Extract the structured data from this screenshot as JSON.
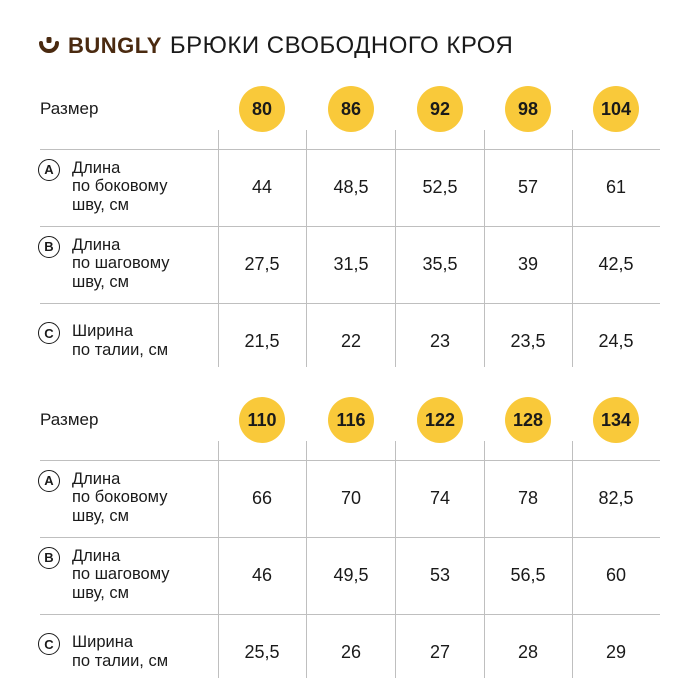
{
  "header": {
    "brand": "BUNGLY",
    "title": "БРЮКИ СВОБОДНОГО КРОЯ",
    "logo_icon": "smile-cup-icon",
    "brand_color": "#4a2a10"
  },
  "colors": {
    "accent": "#f9c93a",
    "grid": "#bfbfbf"
  },
  "tables": [
    {
      "size_label": "Размер",
      "sizes": [
        "80",
        "86",
        "92",
        "98",
        "104"
      ],
      "rows": [
        {
          "badge": "A",
          "label": [
            "Длина",
            "по боковому",
            "шву, см"
          ],
          "values": [
            "44",
            "48,5",
            "52,5",
            "57",
            "61"
          ]
        },
        {
          "badge": "B",
          "label": [
            "Длина",
            "по шаговому",
            "шву, см"
          ],
          "values": [
            "27,5",
            "31,5",
            "35,5",
            "39",
            "42,5"
          ]
        },
        {
          "badge": "C",
          "label": [
            "Ширина",
            "по талии, см"
          ],
          "values": [
            "21,5",
            "22",
            "23",
            "23,5",
            "24,5"
          ]
        }
      ]
    },
    {
      "size_label": "Размер",
      "sizes": [
        "110",
        "116",
        "122",
        "128",
        "134"
      ],
      "rows": [
        {
          "badge": "A",
          "label": [
            "Длина",
            "по боковому",
            "шву, см"
          ],
          "values": [
            "66",
            "70",
            "74",
            "78",
            "82,5"
          ]
        },
        {
          "badge": "B",
          "label": [
            "Длина",
            "по шаговому",
            "шву, см"
          ],
          "values": [
            "46",
            "49,5",
            "53",
            "56,5",
            "60"
          ]
        },
        {
          "badge": "C",
          "label": [
            "Ширина",
            "по талии, см"
          ],
          "values": [
            "25,5",
            "26",
            "27",
            "28",
            "29"
          ]
        }
      ]
    }
  ]
}
